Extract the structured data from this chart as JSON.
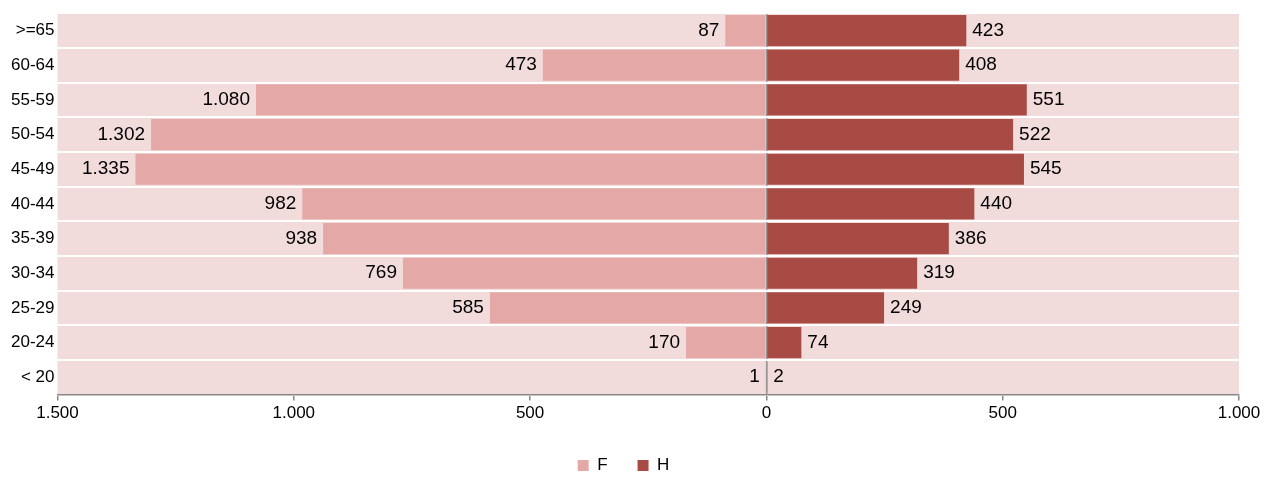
{
  "chart_data": {
    "type": "bar",
    "orientation": "horizontal",
    "categories": [
      ">=65",
      "60-64",
      "55-59",
      "50-54",
      "45-49",
      "40-44",
      "35-39",
      "30-34",
      "25-29",
      "20-24",
      "< 20"
    ],
    "series": [
      {
        "name": "F",
        "color": "#e4a9a7",
        "values": [
          87,
          473,
          1080,
          1302,
          1335,
          982,
          938,
          769,
          585,
          170,
          1
        ],
        "base": [
          -87,
          -473,
          -1080,
          -1302,
          -1335,
          -982,
          -938,
          -769,
          -585,
          -170,
          -1
        ],
        "value_labels": [
          "87",
          "473",
          "1.080",
          "1.302",
          "1.335",
          "982",
          "938",
          "769",
          "585",
          "170",
          "1"
        ]
      },
      {
        "name": "H",
        "color": "#a84b45",
        "values": [
          423,
          408,
          551,
          522,
          545,
          440,
          386,
          319,
          249,
          74,
          2
        ],
        "value_labels": [
          "423",
          "408",
          "551",
          "522",
          "545",
          "440",
          "386",
          "319",
          "249",
          "74",
          "2"
        ]
      }
    ],
    "xlim": [
      -1500,
      1000
    ],
    "xticks": [
      {
        "value": -1500,
        "label": "1.500"
      },
      {
        "value": -1000,
        "label": "1.000"
      },
      {
        "value": -500,
        "label": "500"
      },
      0,
      500,
      {
        "value": 1000,
        "label": "1.000"
      }
    ],
    "grid": "y",
    "legend": "bottom"
  }
}
